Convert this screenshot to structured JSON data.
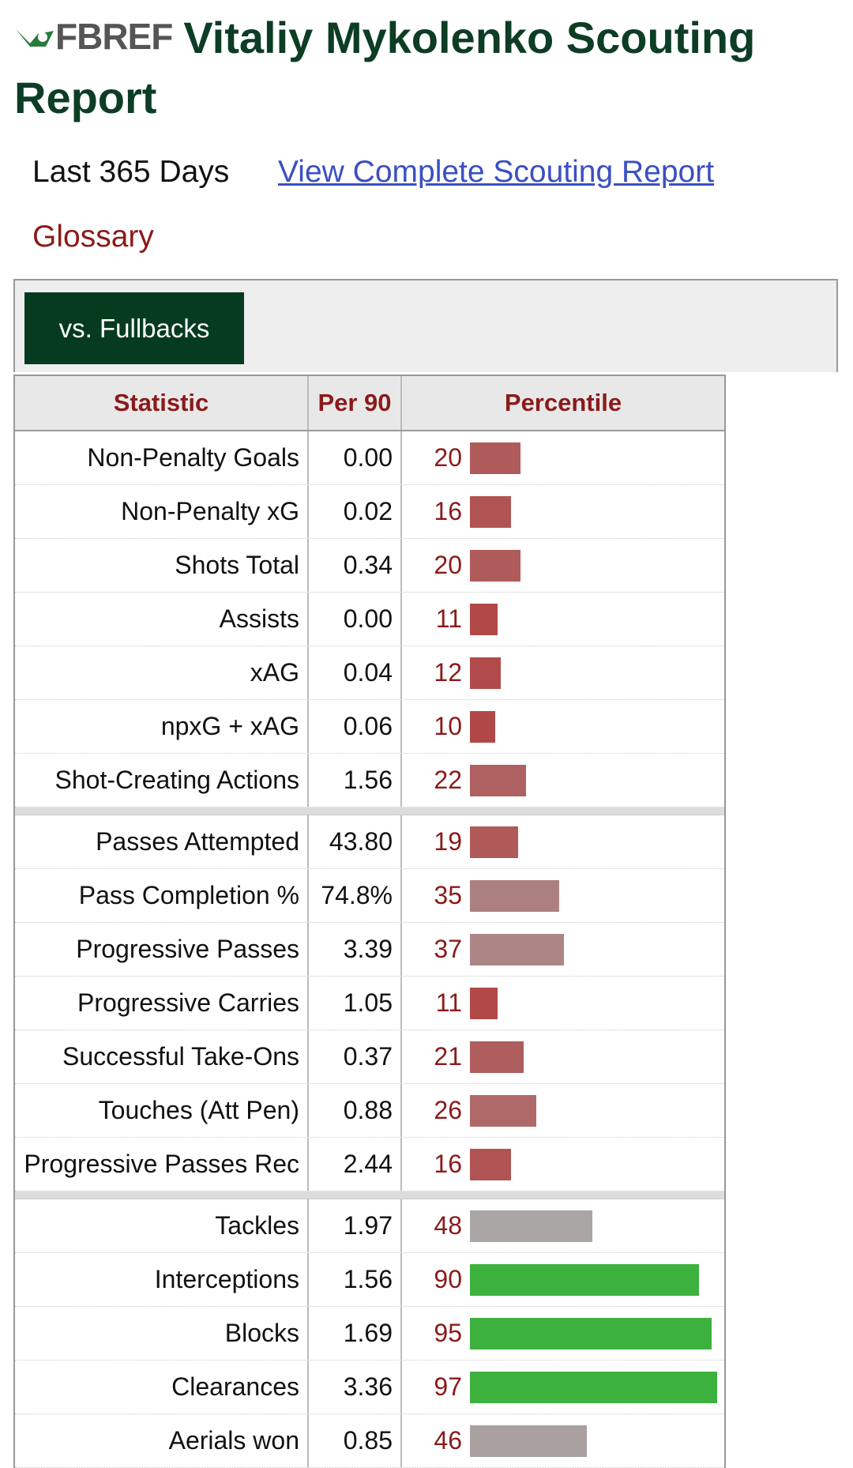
{
  "header": {
    "logo": "FBREF",
    "title": "Vitaliy Mykolenko Scouting Report"
  },
  "links": {
    "period": "Last 365 Days",
    "complete_report": "View Complete Scouting Report",
    "glossary": "Glossary"
  },
  "tab": "vs. Fullbacks",
  "table": {
    "columns": [
      "Statistic",
      "Per 90",
      "Percentile"
    ],
    "groups": [
      [
        {
          "stat": "Non-Penalty Goals",
          "per90": "0.00",
          "percentile": 20
        },
        {
          "stat": "Non-Penalty xG",
          "per90": "0.02",
          "percentile": 16
        },
        {
          "stat": "Shots Total",
          "per90": "0.34",
          "percentile": 20
        },
        {
          "stat": "Assists",
          "per90": "0.00",
          "percentile": 11
        },
        {
          "stat": "xAG",
          "per90": "0.04",
          "percentile": 12
        },
        {
          "stat": "npxG + xAG",
          "per90": "0.06",
          "percentile": 10
        },
        {
          "stat": "Shot-Creating Actions",
          "per90": "1.56",
          "percentile": 22
        }
      ],
      [
        {
          "stat": "Passes Attempted",
          "per90": "43.80",
          "percentile": 19
        },
        {
          "stat": "Pass Completion %",
          "per90": "74.8%",
          "percentile": 35
        },
        {
          "stat": "Progressive Passes",
          "per90": "3.39",
          "percentile": 37
        },
        {
          "stat": "Progressive Carries",
          "per90": "1.05",
          "percentile": 11
        },
        {
          "stat": "Successful Take-Ons",
          "per90": "0.37",
          "percentile": 21
        },
        {
          "stat": "Touches (Att Pen)",
          "per90": "0.88",
          "percentile": 26
        },
        {
          "stat": "Progressive Passes Rec",
          "per90": "2.44",
          "percentile": 16
        }
      ],
      [
        {
          "stat": "Tackles",
          "per90": "1.97",
          "percentile": 48
        },
        {
          "stat": "Interceptions",
          "per90": "1.56",
          "percentile": 90
        },
        {
          "stat": "Blocks",
          "per90": "1.69",
          "percentile": 95
        },
        {
          "stat": "Clearances",
          "per90": "3.36",
          "percentile": 97
        },
        {
          "stat": "Aerials won",
          "per90": "0.85",
          "percentile": 46
        }
      ]
    ]
  }
}
